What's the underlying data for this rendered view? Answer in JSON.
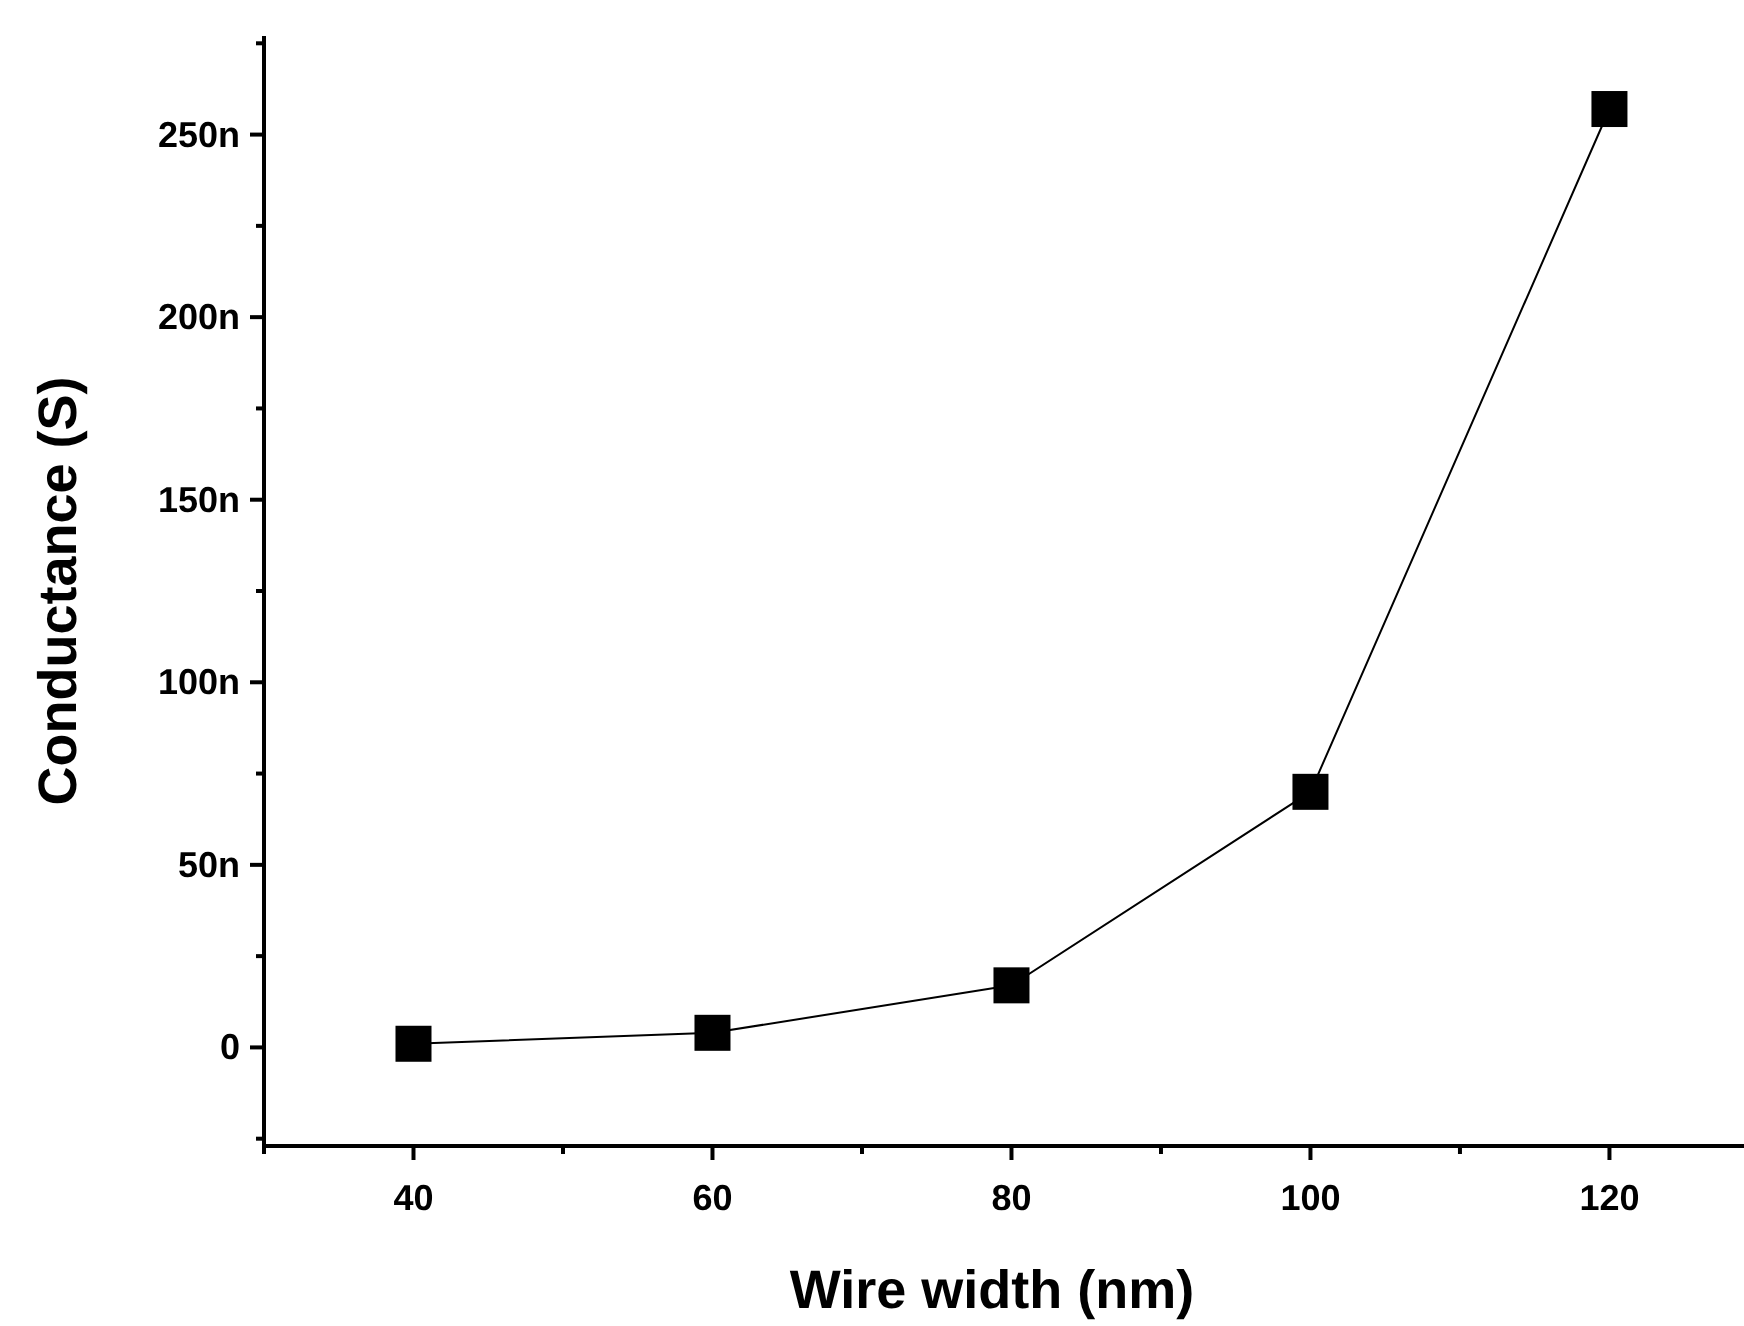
{
  "chart_data": {
    "type": "line",
    "xlabel": "Wire width (nm)",
    "ylabel": "Conductance (S)",
    "x": [
      40,
      60,
      80,
      100,
      120
    ],
    "series": [
      {
        "color": "#000000",
        "values": [
          1,
          4,
          17,
          70,
          257
        ]
      }
    ],
    "marker": "square",
    "line_style": "solid",
    "xlim": [
      30,
      129
    ],
    "ylim": [
      -27,
      277
    ],
    "xticks": [
      {
        "value": 30,
        "label": null
      },
      40,
      {
        "value": 50,
        "label": null
      },
      60,
      {
        "value": 70,
        "label": null
      },
      80,
      {
        "value": 90,
        "label": null
      },
      100,
      {
        "value": 110,
        "label": null
      },
      120
    ],
    "yticks": [
      {
        "value": -25,
        "label": null
      },
      0,
      {
        "value": 25,
        "label": null
      },
      {
        "value": 50,
        "label": "50n"
      },
      {
        "value": 75,
        "label": null
      },
      {
        "value": 100,
        "label": "100n"
      },
      {
        "value": 125,
        "label": null
      },
      {
        "value": 150,
        "label": "150n"
      },
      {
        "value": 175,
        "label": null
      },
      {
        "value": 200,
        "label": "200n"
      },
      {
        "value": 225,
        "label": null
      },
      {
        "value": 250,
        "label": "250n"
      },
      {
        "value": 275,
        "label": null
      }
    ]
  }
}
